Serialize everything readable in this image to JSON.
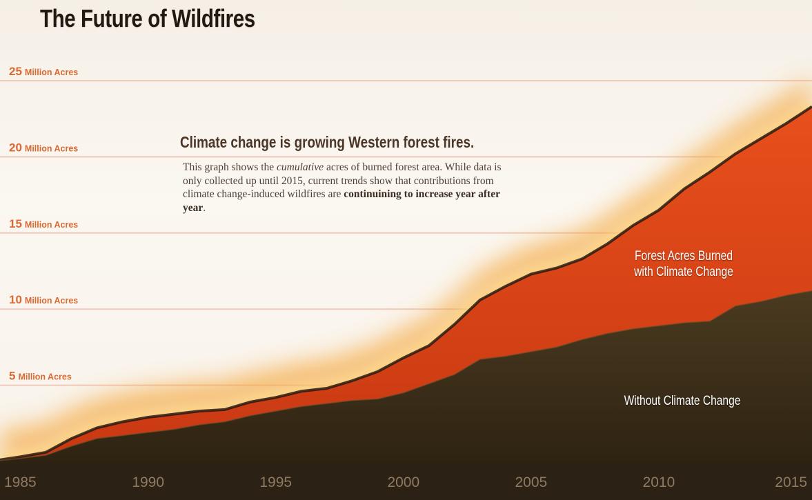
{
  "title": "The Future of Wildfires",
  "headline": "Climate change is growing Western forest fires.",
  "description": {
    "part1": "This graph shows the ",
    "emph": "cumulative",
    "part2": " acres of burned forest area. While data is only collected up until 2015, current trends show that contributions from climate change-induced wildfires are ",
    "bold": "continuining to increase year after year",
    "part3": "."
  },
  "chart_data": {
    "type": "area",
    "title": "The Future of Wildfires",
    "xlabel": "",
    "ylabel": "",
    "xlim": [
      1984.2,
      2016
    ],
    "ylim": [
      0,
      25
    ],
    "x_ticks": [
      "1985",
      "1990",
      "1995",
      "2000",
      "2005",
      "2010",
      "2015"
    ],
    "y_ticks": [
      {
        "value": 5,
        "number": "5",
        "unit": "Million Acres"
      },
      {
        "value": 10,
        "number": "10",
        "unit": "Million Acres"
      },
      {
        "value": 15,
        "number": "15",
        "unit": "Million Acres"
      },
      {
        "value": 20,
        "number": "20",
        "unit": "Million Acres"
      },
      {
        "value": 25,
        "number": "25",
        "unit": "Million Acres"
      }
    ],
    "x": [
      1984.2,
      1985,
      1986,
      1987,
      1988,
      1989,
      1990,
      1991,
      1992,
      1993,
      1994,
      1995,
      1996,
      1997,
      1998,
      1999,
      2000,
      2001,
      2002,
      2003,
      2004,
      2005,
      2006,
      2007,
      2008,
      2009,
      2010,
      2011,
      2012,
      2013,
      2014,
      2015,
      2016
    ],
    "series": [
      {
        "name": "Forest Acres Burned with Climate Change",
        "color": "#dc4418",
        "values": [
          0.1,
          0.3,
          0.6,
          1.5,
          2.2,
          2.6,
          2.9,
          3.1,
          3.3,
          3.4,
          3.9,
          4.2,
          4.6,
          4.8,
          5.3,
          5.9,
          6.8,
          7.6,
          9.0,
          10.6,
          11.5,
          12.3,
          12.7,
          13.3,
          14.3,
          15.5,
          16.5,
          17.9,
          19.0,
          20.2,
          21.2,
          22.2,
          23.3
        ]
      },
      {
        "name": "Without Climate Change",
        "color": "#3a2c17",
        "values": [
          0.05,
          0.2,
          0.4,
          1.0,
          1.5,
          1.7,
          1.9,
          2.1,
          2.4,
          2.6,
          3.0,
          3.3,
          3.6,
          3.8,
          4.0,
          4.1,
          4.5,
          5.1,
          5.7,
          6.7,
          6.9,
          7.2,
          7.5,
          8.0,
          8.4,
          8.7,
          8.9,
          9.1,
          9.2,
          10.2,
          10.5,
          10.9,
          11.2
        ]
      }
    ],
    "grid": true,
    "area_labels": {
      "with_line1": "Forest Acres Burned",
      "with_line2": "with Climate Change",
      "without": "Without Climate Change"
    },
    "colors": {
      "ytick": "#d96a34",
      "gridline": "#efcabb",
      "xaxis_band": "#2b2114",
      "xtick": "#8f7a62"
    }
  }
}
